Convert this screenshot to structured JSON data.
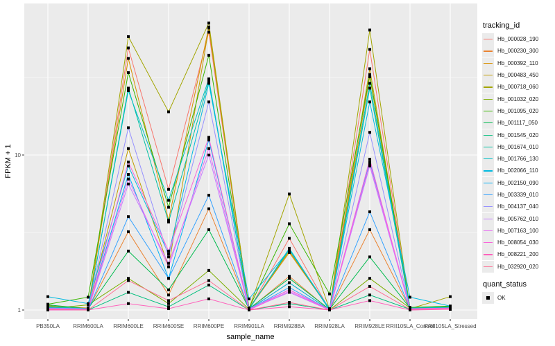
{
  "chart_data": {
    "type": "line",
    "title": "",
    "xlabel": "sample_name",
    "ylabel": "FPKM + 1",
    "yscale": "log10",
    "ylim": [
      0.91,
      100
    ],
    "yticks": [
      {
        "value": 1,
        "label": "1"
      },
      {
        "value": 10,
        "label": "10"
      }
    ],
    "grid": true,
    "legend_position": "right",
    "categories": [
      "PB350LA",
      "RRIM600LA",
      "RRIM600LE",
      "RRIM600SE",
      "RRIM600PE",
      "RRIM901LA",
      "RRIM928BA",
      "RRIM928LA",
      "RRIM928LE",
      "RRII105LA_Control",
      "RRII105LA_Stressed"
    ],
    "legend_title": "tracking_id",
    "shape_legend_title": "quant_status",
    "shape_legend_items": [
      "OK"
    ],
    "series": [
      {
        "name": "Hb_000028_190",
        "color": "#F8766D",
        "values": [
          1.02,
          1.0,
          49.0,
          6.0,
          62.0,
          1.0,
          2.9,
          1.0,
          48.0,
          1.0,
          1.02
        ]
      },
      {
        "name": "Hb_000230_300",
        "color": "#EA8331",
        "values": [
          1.04,
          1.01,
          3.2,
          1.25,
          4.5,
          1.01,
          1.65,
          1.0,
          3.3,
          1.02,
          1.03
        ]
      },
      {
        "name": "Hb_000392_110",
        "color": "#D89000",
        "values": [
          1.05,
          1.02,
          42.0,
          3.8,
          67.0,
          1.02,
          2.35,
          1.01,
          32.0,
          1.03,
          1.04
        ]
      },
      {
        "name": "Hb_000483_450",
        "color": "#C09B00",
        "values": [
          1.06,
          1.03,
          11.0,
          1.9,
          66.0,
          1.03,
          2.4,
          1.01,
          36.0,
          1.02,
          1.03
        ]
      },
      {
        "name": "Hb_000718_060",
        "color": "#A3A500",
        "values": [
          1.07,
          1.0,
          58.0,
          19.0,
          71.0,
          1.02,
          5.6,
          1.01,
          64.0,
          1.02,
          1.22
        ]
      },
      {
        "name": "Hb_001032_020",
        "color": "#7CAE00",
        "values": [
          1.02,
          1.08,
          1.6,
          1.1,
          1.8,
          1.01,
          1.5,
          1.0,
          1.6,
          1.03,
          1.04
        ]
      },
      {
        "name": "Hb_001095_020",
        "color": "#39B600",
        "values": [
          1.09,
          1.21,
          34.0,
          4.6,
          44.0,
          1.03,
          3.6,
          1.27,
          33.0,
          1.04,
          1.06
        ]
      },
      {
        "name": "Hb_001117_050",
        "color": "#00BB4E",
        "values": [
          1.08,
          1.02,
          2.4,
          1.35,
          3.3,
          1.02,
          1.6,
          1.01,
          2.2,
          1.03,
          1.05
        ]
      },
      {
        "name": "Hb_001545_020",
        "color": "#00BF7D",
        "values": [
          1.03,
          1.0,
          1.3,
          1.05,
          1.45,
          1.0,
          1.1,
          1.0,
          1.25,
          1.01,
          1.02
        ]
      },
      {
        "name": "Hb_001674_010",
        "color": "#00C1A3",
        "values": [
          1.04,
          1.01,
          27.0,
          3.7,
          30.0,
          1.02,
          2.45,
          1.0,
          27.0,
          1.02,
          1.03
        ]
      },
      {
        "name": "Hb_001766_130",
        "color": "#00BFC4",
        "values": [
          1.05,
          1.02,
          26.0,
          5.1,
          31.0,
          1.01,
          2.5,
          1.0,
          29.0,
          1.03,
          1.04
        ]
      },
      {
        "name": "Hb_002066_110",
        "color": "#00BAE0",
        "values": [
          1.22,
          1.1,
          8.5,
          2.3,
          29.0,
          1.18,
          2.45,
          1.02,
          22.0,
          1.21,
          1.06
        ]
      },
      {
        "name": "Hb_002150_090",
        "color": "#00B0F6",
        "values": [
          1.03,
          1.01,
          7.5,
          1.6,
          12.5,
          1.01,
          1.5,
          1.0,
          9.0,
          1.02,
          1.03
        ]
      },
      {
        "name": "Hb_003339_010",
        "color": "#35A2FF",
        "values": [
          1.02,
          1.0,
          4.0,
          1.6,
          5.5,
          1.01,
          1.4,
          1.0,
          4.3,
          1.02,
          1.02
        ]
      },
      {
        "name": "Hb_004137_040",
        "color": "#9590FF",
        "values": [
          1.03,
          1.02,
          15.0,
          2.2,
          22.0,
          1.02,
          1.35,
          1.01,
          14.0,
          1.02,
          1.03
        ]
      },
      {
        "name": "Hb_005762_010",
        "color": "#C77CFF",
        "values": [
          1.02,
          1.0,
          6.5,
          2.0,
          10.0,
          1.01,
          1.3,
          1.0,
          8.5,
          1.01,
          1.02
        ]
      },
      {
        "name": "Hb_007163_100",
        "color": "#E76BF3",
        "values": [
          1.02,
          1.01,
          7.0,
          1.9,
          11.0,
          1.0,
          1.32,
          1.0,
          8.8,
          1.02,
          1.03
        ]
      },
      {
        "name": "Hb_008054_030",
        "color": "#FA62DB",
        "values": [
          1.01,
          1.0,
          9.0,
          2.4,
          13.0,
          1.0,
          1.35,
          1.0,
          9.4,
          1.01,
          1.02
        ]
      },
      {
        "name": "Hb_008221_200",
        "color": "#FF62BC",
        "values": [
          1.0,
          1.0,
          1.1,
          1.02,
          1.18,
          1.0,
          1.05,
          1.0,
          1.15,
          1.0,
          1.01
        ]
      },
      {
        "name": "Hb_032920_020",
        "color": "#FF6C91",
        "values": [
          1.01,
          1.0,
          1.55,
          1.15,
          1.55,
          1.0,
          1.12,
          1.0,
          1.42,
          1.01,
          1.02
        ]
      }
    ]
  }
}
